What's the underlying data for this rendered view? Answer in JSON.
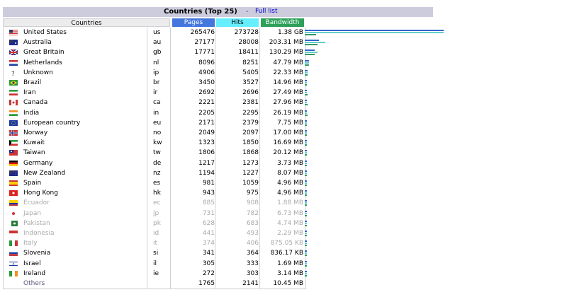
{
  "title": "Countries (Top 25)",
  "separator": "-",
  "full_list_link": "Full list",
  "headers": {
    "countries": "Countries",
    "pages": "Pages",
    "hits": "Hits",
    "bandwidth": "Bandwidth"
  },
  "colors": {
    "pages_header": "#4477dd",
    "hits_header": "#66eeff",
    "bandwidth_header": "#2ea05a"
  },
  "rows": [
    {
      "flag": "us-flag",
      "name": "United States",
      "code": "us",
      "pages": "265476",
      "hits": "273728",
      "bandwidth": "1.38 GB",
      "pages_frac": 1.0,
      "hits_frac": 1.0,
      "bw_frac": 0.08
    },
    {
      "flag": "au-flag",
      "name": "Australia",
      "code": "au",
      "pages": "27177",
      "hits": "28008",
      "bandwidth": "203.31 MB",
      "pages_frac": 0.1,
      "hits_frac": 0.15,
      "bw_frac": 0.09
    },
    {
      "flag": "gb-flag",
      "name": "Great Britain",
      "code": "gb",
      "pages": "17771",
      "hits": "18411",
      "bandwidth": "130.29 MB",
      "pages_frac": 0.07,
      "hits_frac": 0.09,
      "bw_frac": 0.07
    },
    {
      "flag": "nl-flag",
      "name": "Netherlands",
      "code": "nl",
      "pages": "8096",
      "hits": "8251",
      "bandwidth": "47.79 MB",
      "pages_frac": 0.03,
      "hits_frac": 0.03,
      "bw_frac": 0.03
    },
    {
      "flag": "unknown-flag",
      "name": "Unknown",
      "code": "ip",
      "pages": "4906",
      "hits": "5405",
      "bandwidth": "22.33 MB",
      "pages_frac": 0.02,
      "hits_frac": 0.02,
      "bw_frac": 0.02
    },
    {
      "flag": "br-flag",
      "name": "Brazil",
      "code": "br",
      "pages": "3450",
      "hits": "3527",
      "bandwidth": "14.96 MB",
      "pages_frac": 0.015,
      "hits_frac": 0.015,
      "bw_frac": 0.015
    },
    {
      "flag": "ir-flag",
      "name": "Iran",
      "code": "ir",
      "pages": "2692",
      "hits": "2696",
      "bandwidth": "27.49 MB",
      "pages_frac": 0.012,
      "hits_frac": 0.012,
      "bw_frac": 0.02
    },
    {
      "flag": "ca-flag",
      "name": "Canada",
      "code": "ca",
      "pages": "2221",
      "hits": "2381",
      "bandwidth": "27.96 MB",
      "pages_frac": 0.01,
      "hits_frac": 0.01,
      "bw_frac": 0.02
    },
    {
      "flag": "in-flag",
      "name": "India",
      "code": "in",
      "pages": "2205",
      "hits": "2295",
      "bandwidth": "26.19 MB",
      "pages_frac": 0.01,
      "hits_frac": 0.01,
      "bw_frac": 0.02
    },
    {
      "flag": "eu-flag",
      "name": "European country",
      "code": "eu",
      "pages": "2171",
      "hits": "2379",
      "bandwidth": "7.75 MB",
      "pages_frac": 0.01,
      "hits_frac": 0.01,
      "bw_frac": 0.01
    },
    {
      "flag": "no-flag",
      "name": "Norway",
      "code": "no",
      "pages": "2049",
      "hits": "2097",
      "bandwidth": "17.00 MB",
      "pages_frac": 0.01,
      "hits_frac": 0.01,
      "bw_frac": 0.015
    },
    {
      "flag": "kw-flag",
      "name": "Kuwait",
      "code": "kw",
      "pages": "1323",
      "hits": "1850",
      "bandwidth": "16.69 MB",
      "pages_frac": 0.008,
      "hits_frac": 0.008,
      "bw_frac": 0.015
    },
    {
      "flag": "tw-flag",
      "name": "Taiwan",
      "code": "tw",
      "pages": "1806",
      "hits": "1868",
      "bandwidth": "20.12 MB",
      "pages_frac": 0.008,
      "hits_frac": 0.008,
      "bw_frac": 0.015
    },
    {
      "flag": "de-flag",
      "name": "Germany",
      "code": "de",
      "pages": "1217",
      "hits": "1273",
      "bandwidth": "3.73 MB",
      "pages_frac": 0.006,
      "hits_frac": 0.006,
      "bw_frac": 0.006
    },
    {
      "flag": "nz-flag",
      "name": "New Zealand",
      "code": "nz",
      "pages": "1194",
      "hits": "1227",
      "bandwidth": "8.07 MB",
      "pages_frac": 0.006,
      "hits_frac": 0.006,
      "bw_frac": 0.008
    },
    {
      "flag": "es-flag",
      "name": "Spain",
      "code": "es",
      "pages": "981",
      "hits": "1059",
      "bandwidth": "4.96 MB",
      "pages_frac": 0.005,
      "hits_frac": 0.005,
      "bw_frac": 0.006
    },
    {
      "flag": "hk-flag",
      "name": "Hong Kong",
      "code": "hk",
      "pages": "943",
      "hits": "975",
      "bandwidth": "4.96 MB",
      "pages_frac": 0.005,
      "hits_frac": 0.005,
      "bw_frac": 0.006
    },
    {
      "flag": "ec-flag",
      "name": "Ecuador",
      "code": "ec",
      "pages": "885",
      "hits": "908",
      "bandwidth": "1.88 MB",
      "pages_frac": 0.005,
      "hits_frac": 0.005,
      "bw_frac": 0.005,
      "faded": true
    },
    {
      "flag": "jp-flag",
      "name": "Japan",
      "code": "jp",
      "pages": "731",
      "hits": "782",
      "bandwidth": "6.73 MB",
      "pages_frac": 0.005,
      "hits_frac": 0.005,
      "bw_frac": 0.006,
      "faded": true
    },
    {
      "flag": "pk-flag",
      "name": "Pakistan",
      "code": "pk",
      "pages": "628",
      "hits": "683",
      "bandwidth": "4.74 MB",
      "pages_frac": 0.005,
      "hits_frac": 0.005,
      "bw_frac": 0.006,
      "faded": true
    },
    {
      "flag": "id-flag",
      "name": "Indonesia",
      "code": "id",
      "pages": "441",
      "hits": "493",
      "bandwidth": "2.29 MB",
      "pages_frac": 0.004,
      "hits_frac": 0.004,
      "bw_frac": 0.005,
      "faded": true
    },
    {
      "flag": "it-flag",
      "name": "Italy",
      "code": "it",
      "pages": "374",
      "hits": "406",
      "bandwidth": "875.05 KB",
      "pages_frac": 0.004,
      "hits_frac": 0.004,
      "bw_frac": 0.004,
      "faded": true
    },
    {
      "flag": "si-flag",
      "name": "Slovenia",
      "code": "si",
      "pages": "341",
      "hits": "364",
      "bandwidth": "836.17 KB",
      "pages_frac": 0.004,
      "hits_frac": 0.004,
      "bw_frac": 0.004
    },
    {
      "flag": "il-flag",
      "name": "Israel",
      "code": "il",
      "pages": "305",
      "hits": "333",
      "bandwidth": "1.69 MB",
      "pages_frac": 0.004,
      "hits_frac": 0.004,
      "bw_frac": 0.004
    },
    {
      "flag": "ie-flag",
      "name": "Ireland",
      "code": "ie",
      "pages": "272",
      "hits": "303",
      "bandwidth": "3.14 MB",
      "pages_frac": 0.004,
      "hits_frac": 0.004,
      "bw_frac": 0.005
    }
  ],
  "others": {
    "name": "Others",
    "pages": "1765",
    "hits": "2141",
    "bandwidth": "10.45 MB"
  }
}
